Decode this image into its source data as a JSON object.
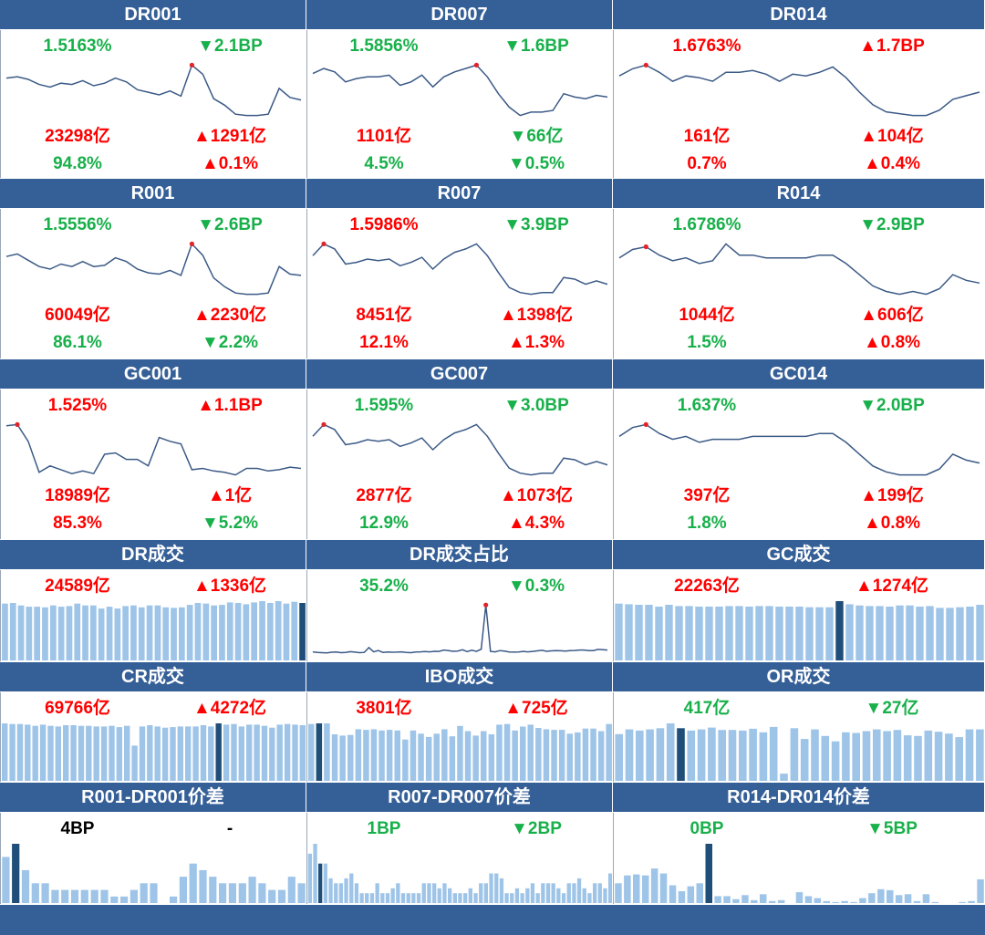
{
  "colors": {
    "header_bg": "#355f97",
    "up": "#ff0000",
    "down": "#18b04a",
    "line": "#3b5a86",
    "bar": "#9ec4e8",
    "bar_highlight": "#1f4e79"
  },
  "chart_data": [
    {
      "title": "DR001",
      "type": "line",
      "rate": "1.5163%",
      "rate_change": "2.1BP",
      "rate_dir": "down",
      "volume": "23298亿",
      "volume_change": "1291亿",
      "volume_dir": "up",
      "share": "94.8%",
      "share_change": "0.1%",
      "share_dir": "up",
      "value_color": "down",
      "values": [
        1.52,
        1.53,
        1.51,
        1.47,
        1.45,
        1.48,
        1.47,
        1.5,
        1.46,
        1.48,
        1.52,
        1.49,
        1.43,
        1.41,
        1.39,
        1.42,
        1.38,
        1.62,
        1.55,
        1.36,
        1.31,
        1.24,
        1.23,
        1.23,
        1.24,
        1.44,
        1.37,
        1.35
      ],
      "peak_index": 17
    },
    {
      "title": "DR007",
      "type": "line",
      "rate": "1.5856%",
      "rate_change": "1.6BP",
      "rate_dir": "down",
      "volume": "1101亿",
      "volume_change": "66亿",
      "volume_dir": "down",
      "share": "4.5%",
      "share_change": "0.5%",
      "share_dir": "down",
      "value_color": "down",
      "values": [
        1.54,
        1.57,
        1.55,
        1.49,
        1.51,
        1.52,
        1.52,
        1.53,
        1.47,
        1.49,
        1.53,
        1.46,
        1.52,
        1.55,
        1.57,
        1.59,
        1.52,
        1.42,
        1.34,
        1.29,
        1.31,
        1.31,
        1.32,
        1.42,
        1.4,
        1.39,
        1.41,
        1.4
      ],
      "peak_index": 15
    },
    {
      "title": "DR014",
      "type": "line",
      "rate": "1.6763%",
      "rate_change": "1.7BP",
      "rate_dir": "up",
      "volume": "161亿",
      "volume_change": "104亿",
      "volume_dir": "up",
      "share": "0.7%",
      "share_change": "0.4%",
      "share_dir": "up",
      "value_color": "up",
      "values": [
        1.64,
        1.68,
        1.7,
        1.66,
        1.61,
        1.64,
        1.63,
        1.61,
        1.66,
        1.66,
        1.67,
        1.65,
        1.61,
        1.65,
        1.64,
        1.66,
        1.69,
        1.63,
        1.55,
        1.48,
        1.44,
        1.43,
        1.42,
        1.42,
        1.45,
        1.51,
        1.53,
        1.55
      ],
      "peak_index": 2
    },
    {
      "title": "R001",
      "type": "line",
      "rate": "1.5556%",
      "rate_change": "2.6BP",
      "rate_dir": "down",
      "volume": "60049亿",
      "volume_change": "2230亿",
      "volume_dir": "up",
      "share": "86.1%",
      "share_change": "2.2%",
      "share_dir": "down",
      "value_color": "down",
      "values": [
        1.55,
        1.57,
        1.52,
        1.47,
        1.45,
        1.49,
        1.47,
        1.51,
        1.47,
        1.48,
        1.54,
        1.51,
        1.45,
        1.42,
        1.41,
        1.44,
        1.4,
        1.65,
        1.56,
        1.38,
        1.31,
        1.26,
        1.25,
        1.25,
        1.26,
        1.47,
        1.41,
        1.4
      ],
      "peak_index": 17
    },
    {
      "title": "R007",
      "type": "line",
      "rate": "1.5986%",
      "rate_change": "3.9BP",
      "rate_dir": "down",
      "volume": "8451亿",
      "volume_change": "1398亿",
      "volume_dir": "up",
      "share": "12.1%",
      "share_change": "1.3%",
      "share_dir": "up",
      "value_color": "up",
      "values": [
        1.57,
        1.64,
        1.61,
        1.52,
        1.53,
        1.55,
        1.54,
        1.55,
        1.51,
        1.53,
        1.56,
        1.49,
        1.55,
        1.59,
        1.61,
        1.64,
        1.57,
        1.47,
        1.38,
        1.35,
        1.34,
        1.35,
        1.35,
        1.44,
        1.43,
        1.4,
        1.42,
        1.4
      ],
      "peak_index": 1
    },
    {
      "title": "R014",
      "type": "line",
      "rate": "1.6786%",
      "rate_change": "2.9BP",
      "rate_dir": "down",
      "volume": "1044亿",
      "volume_change": "606亿",
      "volume_dir": "up",
      "share": "1.5%",
      "share_change": "0.8%",
      "share_dir": "up",
      "value_color": "down",
      "values": [
        1.66,
        1.69,
        1.7,
        1.67,
        1.65,
        1.66,
        1.64,
        1.65,
        1.71,
        1.67,
        1.67,
        1.66,
        1.66,
        1.66,
        1.66,
        1.67,
        1.67,
        1.64,
        1.6,
        1.56,
        1.54,
        1.53,
        1.54,
        1.53,
        1.55,
        1.6,
        1.58,
        1.57
      ],
      "peak_index": 2
    },
    {
      "title": "GC001",
      "type": "line",
      "rate": "1.525%",
      "rate_change": "1.1BP",
      "rate_dir": "up",
      "volume": "18989亿",
      "volume_change": "1亿",
      "volume_dir": "up",
      "share": "85.3%",
      "share_change": "5.2%",
      "share_dir": "down",
      "value_color": "up",
      "values": [
        1.52,
        1.53,
        1.4,
        1.16,
        1.21,
        1.18,
        1.15,
        1.17,
        1.15,
        1.3,
        1.31,
        1.26,
        1.26,
        1.21,
        1.43,
        1.4,
        1.38,
        1.18,
        1.19,
        1.17,
        1.16,
        1.14,
        1.19,
        1.19,
        1.17,
        1.18,
        1.2,
        1.19
      ],
      "peak_index": 1
    },
    {
      "title": "GC007",
      "type": "line",
      "rate": "1.595%",
      "rate_change": "3.0BP",
      "rate_dir": "down",
      "volume": "2877亿",
      "volume_change": "1073亿",
      "volume_dir": "up",
      "share": "12.9%",
      "share_change": "4.3%",
      "share_dir": "up",
      "value_color": "down",
      "values": [
        1.57,
        1.64,
        1.61,
        1.52,
        1.53,
        1.55,
        1.54,
        1.55,
        1.51,
        1.53,
        1.56,
        1.49,
        1.55,
        1.59,
        1.61,
        1.64,
        1.57,
        1.47,
        1.38,
        1.35,
        1.34,
        1.35,
        1.35,
        1.44,
        1.43,
        1.4,
        1.42,
        1.4
      ],
      "peak_index": 1
    },
    {
      "title": "GC014",
      "type": "line",
      "rate": "1.637%",
      "rate_change": "2.0BP",
      "rate_dir": "down",
      "volume": "397亿",
      "volume_change": "199亿",
      "volume_dir": "up",
      "share": "1.8%",
      "share_change": "0.8%",
      "share_dir": "up",
      "value_color": "down",
      "values": [
        1.66,
        1.69,
        1.7,
        1.67,
        1.65,
        1.66,
        1.64,
        1.65,
        1.65,
        1.65,
        1.66,
        1.66,
        1.66,
        1.66,
        1.66,
        1.67,
        1.67,
        1.64,
        1.6,
        1.56,
        1.54,
        1.53,
        1.53,
        1.53,
        1.55,
        1.6,
        1.58,
        1.57
      ],
      "peak_index": 2
    },
    {
      "title": "DR成交",
      "type": "bar",
      "rate": "24589亿",
      "rate_change": "1336亿",
      "rate_dir": "up",
      "value_color": "up",
      "values": [
        92,
        93,
        89,
        87,
        87,
        86,
        89,
        87,
        88,
        92,
        89,
        89,
        84,
        87,
        84,
        88,
        89,
        86,
        89,
        89,
        86,
        85,
        86,
        90,
        93,
        92,
        89,
        90,
        94,
        93,
        91,
        94,
        96,
        93,
        96,
        92,
        95,
        93
      ],
      "highlight_index": 37
    },
    {
      "title": "DR成交占比",
      "type": "line",
      "rate": "35.2%",
      "rate_change": "0.3%",
      "rate_dir": "down",
      "value_color": "down",
      "values": [
        1.0,
        0.5,
        0.4,
        0.2,
        0.7,
        0.9,
        0.4,
        0.5,
        1.1,
        0.8,
        0.4,
        0.6,
        4.1,
        1.0,
        1.9,
        0.6,
        0.9,
        0.7,
        0.8,
        1.0,
        0.6,
        0.4,
        0.9,
        1.0,
        1.2,
        1.0,
        1.4,
        1.3,
        2.3,
        1.9,
        1.4,
        1.6,
        2.5,
        1.2,
        2.2,
        1.3,
        2.9,
        35.2,
        1.3,
        1.0,
        1.9,
        1.5,
        0.9,
        0.8,
        0.9,
        1.3,
        1.0,
        1.3,
        1.7,
        2.1,
        1.4,
        1.7,
        1.9,
        1.8,
        1.5,
        1.9,
        2.0,
        2.3,
        2.3,
        1.9,
        1.9,
        2.8,
        2.5,
        2.3
      ],
      "peak_index": 37
    },
    {
      "title": "GC成交",
      "type": "bar",
      "rate": "22263亿",
      "rate_change": "1274亿",
      "rate_dir": "up",
      "value_color": "up",
      "values": [
        93,
        92,
        91,
        91,
        88,
        91,
        89,
        89,
        88,
        88,
        88,
        89,
        89,
        88,
        89,
        89,
        88,
        88,
        88,
        87,
        87,
        87,
        97,
        92,
        90,
        89,
        89,
        88,
        90,
        90,
        88,
        89,
        86,
        86,
        87,
        88,
        91
      ],
      "highlight_index": 22
    },
    {
      "title": "CR成交",
      "type": "bar",
      "rate": "69766亿",
      "rate_change": "4272亿",
      "rate_dir": "up",
      "value_color": "up",
      "values": [
        93,
        92,
        92,
        91,
        89,
        91,
        89,
        88,
        90,
        90,
        89,
        89,
        88,
        88,
        89,
        87,
        89,
        57,
        88,
        90,
        88,
        86,
        87,
        88,
        88,
        88,
        90,
        88,
        93,
        91,
        92,
        88,
        91,
        91,
        89,
        86,
        91,
        92,
        91,
        90
      ],
      "highlight_index": 28
    },
    {
      "title": "IBO成交",
      "type": "bar",
      "rate": "3801亿",
      "rate_change": "725亿",
      "rate_dir": "up",
      "value_color": "up",
      "values": [
        88,
        89,
        89,
        72,
        70,
        71,
        80,
        79,
        80,
        78,
        79,
        78,
        64,
        78,
        73,
        68,
        73,
        80,
        69,
        85,
        77,
        70,
        77,
        72,
        87,
        88,
        78,
        84,
        87,
        82,
        80,
        79,
        79,
        73,
        75,
        81,
        81,
        77,
        88
      ],
      "highlight_index": 1
    },
    {
      "title": "OR成交",
      "type": "bar",
      "rate": "417亿",
      "rate_change": "27亿",
      "rate_dir": "down",
      "value_color": "down",
      "values": [
        78,
        86,
        84,
        86,
        88,
        96,
        88,
        84,
        86,
        89,
        85,
        85,
        84,
        87,
        81,
        90,
        12,
        88,
        70,
        86,
        75,
        66,
        81,
        80,
        83,
        86,
        83,
        85,
        76,
        75,
        84,
        82,
        79,
        73,
        86,
        86
      ],
      "highlight_index": 6
    },
    {
      "title": "R001-DR001价差",
      "type": "bar",
      "rate": "4BP",
      "rate_change": "-",
      "rate_dir": "none",
      "value_color": "flat",
      "values": [
        7,
        9,
        5,
        3,
        3,
        2,
        2,
        2,
        2,
        2,
        2,
        1,
        1,
        2,
        3,
        3,
        0,
        1,
        4,
        6,
        5,
        4,
        3,
        3,
        3,
        4,
        3,
        2,
        2,
        4,
        3
      ],
      "highlight_index": 1
    },
    {
      "title": "R007-DR007价差",
      "type": "bar",
      "rate": "1BP",
      "rate_change": "2BP",
      "rate_dir": "down",
      "value_color": "down",
      "values": [
        10,
        12,
        8,
        8,
        5,
        4,
        4,
        5,
        6,
        4,
        2,
        2,
        2,
        4,
        2,
        2,
        3,
        4,
        2,
        2,
        2,
        2,
        4,
        4,
        4,
        3,
        4,
        3,
        2,
        2,
        2,
        3,
        2,
        4,
        4,
        6,
        6,
        5,
        2,
        2,
        3,
        2,
        3,
        4,
        2,
        4,
        4,
        4,
        3,
        2,
        4,
        4,
        5,
        3,
        2,
        4,
        4,
        3,
        6
      ],
      "highlight_index": 2
    },
    {
      "title": "R014-DR014价差",
      "type": "bar",
      "rate": "0BP",
      "rate_change": "5BP",
      "rate_dir": "down",
      "value_color": "down",
      "values": [
        20,
        28,
        29,
        28,
        35,
        30,
        18,
        12,
        17,
        20,
        60,
        7,
        7,
        4,
        8,
        3,
        9,
        2,
        3,
        0,
        11,
        7,
        5,
        2,
        1,
        2,
        1,
        5,
        10,
        14,
        13,
        8,
        9,
        2,
        9,
        1,
        0,
        0,
        1,
        2,
        24
      ],
      "highlight_index": 10
    }
  ]
}
